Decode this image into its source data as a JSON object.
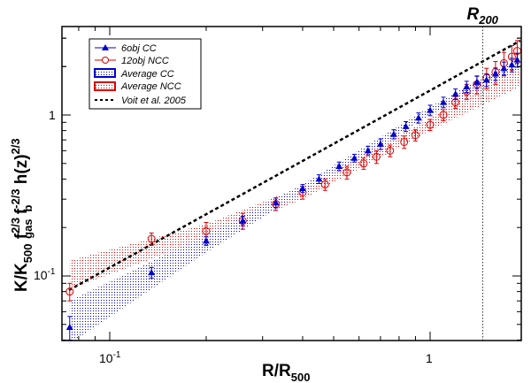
{
  "chart_data": {
    "type": "scatter",
    "xscale": "log",
    "yscale": "log",
    "xlim": [
      0.071,
      1.93
    ],
    "ylim": [
      0.039,
      3.55
    ],
    "xlabel": {
      "main": "R/R",
      "sub": "500"
    },
    "ylabel": {
      "k": "K/K",
      "k_sub": "500",
      "fgas": " f",
      "fgas_sup": "2/3",
      "fgas_sub": "gas",
      "fb": " f",
      "fb_sup": "-2/3",
      "fb_sub": "b",
      "hz": " h(z)",
      "hz_sup": "2/3"
    },
    "xticks": [
      {
        "value": 0.1,
        "base": "10",
        "exp": "-1"
      },
      {
        "value": 1,
        "label": "1"
      }
    ],
    "yticks": [
      {
        "value": 0.1,
        "base": "10",
        "exp": "-1"
      },
      {
        "value": 1,
        "label": "1"
      }
    ],
    "grid": false,
    "legend_placement": "top-left",
    "annotation": {
      "x": 1.46,
      "label": "R",
      "sub": "200"
    },
    "colors": {
      "cc": "#0000cc",
      "ncc": "#dd0000",
      "model": "#000000"
    },
    "series": [
      {
        "name": "6obj CC",
        "marker": "triangle",
        "x": [
          0.075,
          0.135,
          0.2,
          0.26,
          0.33,
          0.4,
          0.45,
          0.52,
          0.58,
          0.64,
          0.7,
          0.77,
          0.84,
          0.92,
          1.0,
          1.1,
          1.2,
          1.3,
          1.4,
          1.5,
          1.6,
          1.7,
          1.8,
          1.87
        ],
        "y": [
          0.048,
          0.105,
          0.165,
          0.22,
          0.285,
          0.35,
          0.4,
          0.48,
          0.54,
          0.6,
          0.66,
          0.76,
          0.85,
          0.96,
          1.07,
          1.2,
          1.35,
          1.5,
          1.6,
          1.65,
          1.8,
          1.95,
          2.05,
          2.2
        ],
        "err": [
          0.008,
          0.008,
          0.01,
          0.015,
          0.02,
          0.02,
          0.025,
          0.03,
          0.03,
          0.04,
          0.05,
          0.05,
          0.06,
          0.07,
          0.08,
          0.09,
          0.1,
          0.12,
          0.14,
          0.15,
          0.16,
          0.18,
          0.2,
          0.22
        ]
      },
      {
        "name": "12obj NCC",
        "marker": "open-circle",
        "x": [
          0.075,
          0.135,
          0.2,
          0.26,
          0.33,
          0.4,
          0.47,
          0.55,
          0.62,
          0.68,
          0.75,
          0.83,
          0.9,
          1.0,
          1.1,
          1.2,
          1.3,
          1.4,
          1.5,
          1.6,
          1.7,
          1.8,
          1.87
        ],
        "y": [
          0.08,
          0.17,
          0.19,
          0.22,
          0.28,
          0.33,
          0.37,
          0.44,
          0.5,
          0.55,
          0.6,
          0.68,
          0.75,
          0.87,
          1.0,
          1.2,
          1.4,
          1.55,
          1.7,
          1.85,
          2.1,
          2.3,
          2.5
        ],
        "err": [
          0.01,
          0.015,
          0.025,
          0.025,
          0.025,
          0.03,
          0.03,
          0.04,
          0.04,
          0.05,
          0.05,
          0.06,
          0.06,
          0.07,
          0.08,
          0.1,
          0.15,
          0.2,
          0.25,
          0.3,
          0.35,
          0.4,
          0.4
        ]
      },
      {
        "name": "Average CC",
        "type": "band",
        "x": [
          0.075,
          0.2,
          0.4,
          1.0,
          1.9
        ],
        "lo": [
          0.038,
          0.14,
          0.33,
          1.0,
          1.9
        ],
        "hi": [
          0.07,
          0.18,
          0.37,
          1.12,
          2.3
        ]
      },
      {
        "name": "Average NCC",
        "type": "band",
        "x": [
          0.075,
          0.2,
          0.4,
          1.0,
          1.9
        ],
        "lo": [
          0.083,
          0.17,
          0.3,
          0.8,
          1.5
        ],
        "hi": [
          0.125,
          0.21,
          0.36,
          0.95,
          2.3
        ]
      },
      {
        "name": "Voit et al. 2005",
        "type": "line",
        "coef": 1.42,
        "slope": 1.1
      }
    ]
  }
}
